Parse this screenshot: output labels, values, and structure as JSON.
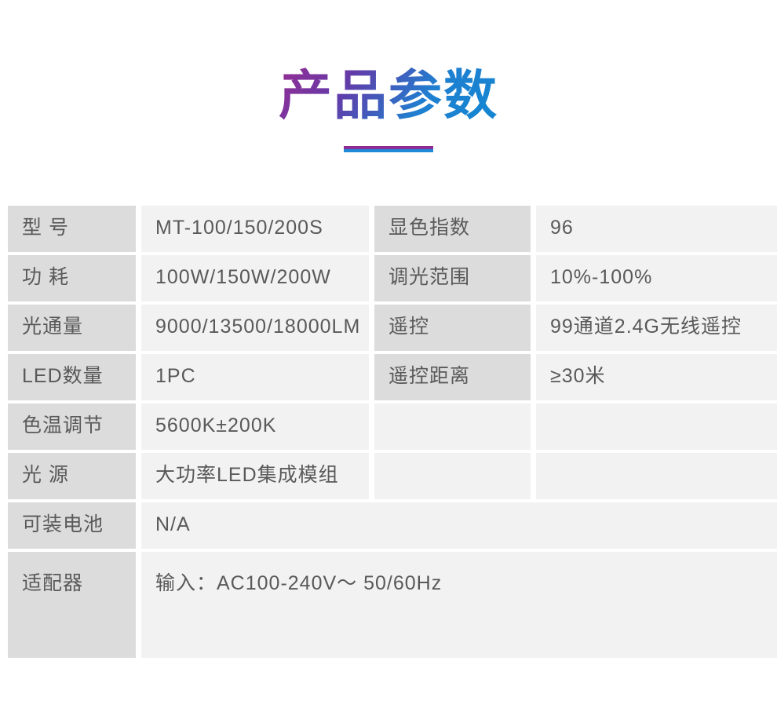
{
  "header": {
    "title": "产品参数",
    "title_gradient_from": "#962d93",
    "title_gradient_to": "#1287d2",
    "underline_top_color": "#8e2b93",
    "underline_bottom_color": "#1e8ad8"
  },
  "table": {
    "colors": {
      "label_cell_bg": "#dcdcdc",
      "value_cell_bg": "#f2f2f2",
      "text": "#595959",
      "gutter": "#ffffff"
    },
    "rows": [
      {
        "label1": "型 号",
        "value1": "MT-100/150/200S",
        "label2": "显色指数",
        "value2": "96"
      },
      {
        "label1": "功 耗",
        "value1": "100W/150W/200W",
        "label2": "调光范围",
        "value2": "10%-100%"
      },
      {
        "label1": "光通量",
        "value1": "9000/13500/18000LM",
        "label2": "遥控",
        "value2": "99通道2.4G无线遥控"
      },
      {
        "label1": "LED数量",
        "value1": "1PC",
        "label2": "遥控距离",
        "value2": "≥30米"
      },
      {
        "label1": "色温调节",
        "value1": "5600K±200K",
        "label2": "",
        "value2": ""
      },
      {
        "label1": "光 源",
        "value1": "大功率LED集成模组",
        "label2": "",
        "value2": ""
      },
      {
        "label1": "可装电池",
        "value1": "N/A"
      },
      {
        "label1": "适配器",
        "value1": "输入：AC100-240V～ 50/60Hz"
      }
    ]
  }
}
